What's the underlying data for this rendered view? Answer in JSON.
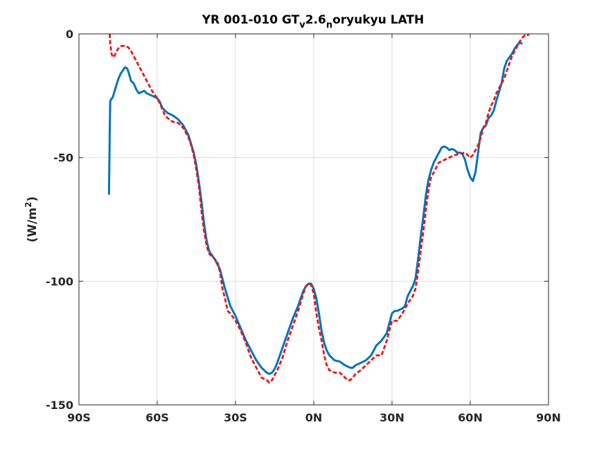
{
  "chart_data": {
    "type": "line",
    "title": {
      "parts": [
        {
          "text": "YR 001-010 GT",
          "shift": "base"
        },
        {
          "text": "v",
          "shift": "sub"
        },
        {
          "text": "2.6",
          "shift": "base"
        },
        {
          "text": "n",
          "shift": "sub"
        },
        {
          "text": "oryukyu LATH",
          "shift": "base"
        }
      ]
    },
    "ylabel": {
      "before": "(W/m",
      "sup": "2",
      "after": ")"
    },
    "xlim": [
      -90,
      90
    ],
    "ylim": [
      -150,
      0
    ],
    "grid": true,
    "x_ticks": [
      {
        "value": -90,
        "label": "90S"
      },
      {
        "value": -60,
        "label": "60S"
      },
      {
        "value": -30,
        "label": "30S"
      },
      {
        "value": 0,
        "label": "0N"
      },
      {
        "value": 30,
        "label": "30N"
      },
      {
        "value": 60,
        "label": "60N"
      },
      {
        "value": 90,
        "label": "90N"
      }
    ],
    "y_ticks": [
      {
        "value": 0,
        "label": "0"
      },
      {
        "value": -50,
        "label": "-50"
      },
      {
        "value": -100,
        "label": "-100"
      },
      {
        "value": -150,
        "label": "-150"
      }
    ],
    "series": [
      {
        "color": "#0072BD",
        "style": "solid",
        "points": [
          [
            -78.5,
            -65
          ],
          [
            -78.3,
            -48
          ],
          [
            -78.2,
            -40
          ],
          [
            -78.0,
            -27
          ],
          [
            -77.0,
            -25.5
          ],
          [
            -76.0,
            -22
          ],
          [
            -75.0,
            -18.5
          ],
          [
            -74.0,
            -16
          ],
          [
            -73.0,
            -14.5
          ],
          [
            -72.3,
            -13.5
          ],
          [
            -71.5,
            -14
          ],
          [
            -71.0,
            -15.5
          ],
          [
            -70.0,
            -19
          ],
          [
            -69.0,
            -20
          ],
          [
            -68.0,
            -22.5
          ],
          [
            -67.0,
            -24
          ],
          [
            -66.0,
            -23.5
          ],
          [
            -65.0,
            -23
          ],
          [
            -64.0,
            -24
          ],
          [
            -62.0,
            -25
          ],
          [
            -60.0,
            -26
          ],
          [
            -59.0,
            -27.5
          ],
          [
            -58.0,
            -30
          ],
          [
            -56.0,
            -32
          ],
          [
            -54.0,
            -33
          ],
          [
            -52.0,
            -34.5
          ],
          [
            -50.0,
            -37
          ],
          [
            -48.0,
            -41
          ],
          [
            -46.0,
            -48
          ],
          [
            -45.0,
            -53
          ],
          [
            -44.0,
            -60
          ],
          [
            -43.0,
            -68
          ],
          [
            -42.0,
            -77
          ],
          [
            -41.0,
            -84
          ],
          [
            -40.0,
            -88
          ],
          [
            -38.0,
            -91
          ],
          [
            -36.0,
            -95
          ],
          [
            -34.0,
            -103
          ],
          [
            -32.0,
            -110
          ],
          [
            -30.0,
            -114
          ],
          [
            -28.0,
            -119
          ],
          [
            -26.0,
            -124
          ],
          [
            -24.0,
            -128
          ],
          [
            -22.0,
            -132
          ],
          [
            -20.0,
            -135
          ],
          [
            -18.0,
            -137
          ],
          [
            -17.0,
            -137.5
          ],
          [
            -16.0,
            -137
          ],
          [
            -15.0,
            -135.5
          ],
          [
            -14.0,
            -133
          ],
          [
            -12.0,
            -127
          ],
          [
            -10.0,
            -121
          ],
          [
            -8.0,
            -115
          ],
          [
            -6.0,
            -110
          ],
          [
            -4.0,
            -104
          ],
          [
            -3.0,
            -102
          ],
          [
            -2.0,
            -101
          ],
          [
            -1.0,
            -101
          ],
          [
            0.0,
            -103
          ],
          [
            1.0,
            -107
          ],
          [
            2.0,
            -113
          ],
          [
            3.0,
            -120
          ],
          [
            4.0,
            -125
          ],
          [
            5.0,
            -128
          ],
          [
            6.0,
            -130
          ],
          [
            7.0,
            -131
          ],
          [
            8.0,
            -132
          ],
          [
            10.0,
            -132.5
          ],
          [
            12.0,
            -134
          ],
          [
            14.0,
            -135
          ],
          [
            15.0,
            -135
          ],
          [
            16.0,
            -134
          ],
          [
            18.0,
            -133
          ],
          [
            20.0,
            -132
          ],
          [
            22.0,
            -130
          ],
          [
            24.0,
            -126
          ],
          [
            26.0,
            -124
          ],
          [
            28.0,
            -121
          ],
          [
            29.0,
            -117
          ],
          [
            30.0,
            -113
          ],
          [
            31.0,
            -112
          ],
          [
            32.0,
            -112
          ],
          [
            33.0,
            -111.5
          ],
          [
            34.0,
            -111
          ],
          [
            35.0,
            -110
          ],
          [
            36.0,
            -106
          ],
          [
            37.0,
            -104
          ],
          [
            38.0,
            -102
          ],
          [
            39.0,
            -99
          ],
          [
            40.0,
            -91
          ],
          [
            41.0,
            -82
          ],
          [
            42.0,
            -74
          ],
          [
            43.0,
            -65
          ],
          [
            44.0,
            -59
          ],
          [
            45.0,
            -55
          ],
          [
            46.0,
            -52
          ],
          [
            47.0,
            -50
          ],
          [
            48.0,
            -48
          ],
          [
            49.0,
            -46
          ],
          [
            50.0,
            -45.5
          ],
          [
            51.0,
            -46
          ],
          [
            52.0,
            -47
          ],
          [
            53.0,
            -46.5
          ],
          [
            54.0,
            -47
          ],
          [
            55.0,
            -48
          ],
          [
            56.0,
            -48
          ],
          [
            57.0,
            -48.5
          ],
          [
            58.0,
            -51
          ],
          [
            59.0,
            -55
          ],
          [
            60.0,
            -58
          ],
          [
            61.0,
            -59.5
          ],
          [
            62.0,
            -56
          ],
          [
            63.0,
            -48
          ],
          [
            64.0,
            -40
          ],
          [
            65.0,
            -38
          ],
          [
            66.0,
            -37
          ],
          [
            67.0,
            -34
          ],
          [
            68.0,
            -33
          ],
          [
            69.0,
            -31
          ],
          [
            70.0,
            -27
          ],
          [
            72.0,
            -20
          ],
          [
            73.0,
            -14
          ],
          [
            74.0,
            -11
          ],
          [
            75.0,
            -9.5
          ],
          [
            76.0,
            -8
          ],
          [
            77.0,
            -6
          ],
          [
            78.0,
            -4.5
          ],
          [
            79.0,
            -3.5
          ],
          [
            80.0,
            -4
          ]
        ]
      },
      {
        "color": "#E3181A",
        "style": "dashed",
        "points": [
          [
            -78.2,
            0
          ],
          [
            -78.0,
            -4
          ],
          [
            -77.5,
            -8
          ],
          [
            -77.0,
            -9.5
          ],
          [
            -76.5,
            -9
          ],
          [
            -76.0,
            -8
          ],
          [
            -75.0,
            -6
          ],
          [
            -74.0,
            -5
          ],
          [
            -73.0,
            -4.8
          ],
          [
            -72.0,
            -5
          ],
          [
            -71.0,
            -5.5
          ],
          [
            -70.0,
            -7
          ],
          [
            -69.0,
            -9
          ],
          [
            -68.0,
            -11
          ],
          [
            -67.0,
            -13
          ],
          [
            -66.0,
            -15
          ],
          [
            -65.0,
            -17
          ],
          [
            -64.0,
            -19
          ],
          [
            -62.0,
            -23
          ],
          [
            -60.0,
            -26
          ],
          [
            -59.0,
            -28
          ],
          [
            -58.0,
            -30.5
          ],
          [
            -57.0,
            -33
          ],
          [
            -56.0,
            -34
          ],
          [
            -55.0,
            -35
          ],
          [
            -54.0,
            -35.5
          ],
          [
            -52.0,
            -36
          ],
          [
            -50.0,
            -38
          ],
          [
            -48.0,
            -42
          ],
          [
            -47.0,
            -45
          ],
          [
            -46.0,
            -49
          ],
          [
            -45.0,
            -55
          ],
          [
            -44.0,
            -62
          ],
          [
            -43.0,
            -72
          ],
          [
            -42.0,
            -80
          ],
          [
            -41.0,
            -86
          ],
          [
            -40.0,
            -89
          ],
          [
            -39.0,
            -90
          ],
          [
            -38.0,
            -91
          ],
          [
            -37.0,
            -92
          ],
          [
            -36.0,
            -96
          ],
          [
            -35.0,
            -103
          ],
          [
            -34.0,
            -107
          ],
          [
            -33.0,
            -112
          ],
          [
            -32.0,
            -113
          ],
          [
            -30.0,
            -116
          ],
          [
            -28.0,
            -120
          ],
          [
            -26.0,
            -125
          ],
          [
            -24.0,
            -131
          ],
          [
            -22.0,
            -135
          ],
          [
            -20.0,
            -139
          ],
          [
            -18.0,
            -140
          ],
          [
            -17.0,
            -141
          ],
          [
            -16.0,
            -140
          ],
          [
            -15.0,
            -138
          ],
          [
            -14.0,
            -136
          ],
          [
            -12.0,
            -131
          ],
          [
            -10.0,
            -124
          ],
          [
            -8.0,
            -118
          ],
          [
            -6.0,
            -112
          ],
          [
            -4.0,
            -105
          ],
          [
            -3.0,
            -102
          ],
          [
            -2.0,
            -101
          ],
          [
            -1.0,
            -101.5
          ],
          [
            0.0,
            -105
          ],
          [
            1.0,
            -113
          ],
          [
            2.0,
            -119
          ],
          [
            3.0,
            -124
          ],
          [
            4.0,
            -130
          ],
          [
            5.0,
            -134
          ],
          [
            6.0,
            -136
          ],
          [
            8.0,
            -137
          ],
          [
            10.0,
            -137
          ],
          [
            12.0,
            -139
          ],
          [
            13.0,
            -140
          ],
          [
            14.0,
            -140
          ],
          [
            15.0,
            -139
          ],
          [
            16.0,
            -137.5
          ],
          [
            18.0,
            -136
          ],
          [
            20.0,
            -134
          ],
          [
            22.0,
            -132
          ],
          [
            24.0,
            -130
          ],
          [
            26.0,
            -130
          ],
          [
            27.0,
            -127
          ],
          [
            28.0,
            -124
          ],
          [
            29.0,
            -120
          ],
          [
            30.0,
            -116
          ],
          [
            32.0,
            -116
          ],
          [
            34.0,
            -113
          ],
          [
            36.0,
            -109
          ],
          [
            38.0,
            -106
          ],
          [
            39.0,
            -103
          ],
          [
            40.0,
            -96
          ],
          [
            41.0,
            -88
          ],
          [
            42.0,
            -80
          ],
          [
            43.0,
            -71
          ],
          [
            44.0,
            -63
          ],
          [
            45.0,
            -58
          ],
          [
            46.0,
            -56
          ],
          [
            47.0,
            -54
          ],
          [
            48.0,
            -52
          ],
          [
            50.0,
            -51
          ],
          [
            52.0,
            -50
          ],
          [
            54.0,
            -49
          ],
          [
            56.0,
            -48.5
          ],
          [
            58.0,
            -48
          ],
          [
            59.0,
            -49
          ],
          [
            60.0,
            -50
          ],
          [
            61.0,
            -49
          ],
          [
            62.0,
            -47
          ],
          [
            63.0,
            -45
          ],
          [
            64.0,
            -42
          ],
          [
            65.0,
            -38
          ],
          [
            66.0,
            -36
          ],
          [
            67.0,
            -32
          ],
          [
            68.0,
            -29
          ],
          [
            69.0,
            -27
          ],
          [
            70.0,
            -24
          ],
          [
            71.0,
            -22
          ],
          [
            72.0,
            -20
          ],
          [
            73.0,
            -18
          ],
          [
            74.0,
            -15
          ],
          [
            75.0,
            -12
          ],
          [
            76.0,
            -9
          ],
          [
            77.0,
            -7
          ],
          [
            78.0,
            -5
          ],
          [
            79.0,
            -3
          ],
          [
            80.0,
            -1.5
          ],
          [
            81.0,
            -0.5
          ],
          [
            82.0,
            -0.5
          ],
          [
            82.5,
            0
          ]
        ]
      }
    ]
  }
}
